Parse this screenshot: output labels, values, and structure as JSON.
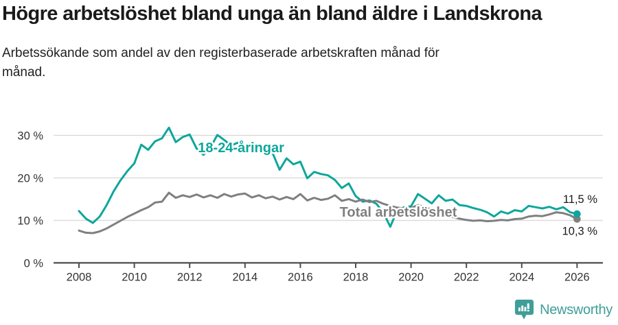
{
  "header": {
    "title": "Högre arbetslöshet bland unga än bland äldre i Landskrona",
    "subtitle": "Arbetssökande som andel av den registerbaserade arbetskraften månad för månad."
  },
  "chart_data": {
    "type": "line",
    "title": "Högre arbetslöshet bland unga än bland äldre i Landskrona",
    "subtitle": "Arbetssökande som andel av den registerbaserade arbetskraften månad för månad.",
    "unit": "%",
    "grid": "horizontal-only",
    "legend_position": "inline-labels",
    "xlim": [
      2007.1,
      2026.9
    ],
    "ylim": [
      0,
      33.5
    ],
    "x_ticks": [
      {
        "v": 2008,
        "label": "2008"
      },
      {
        "v": 2010,
        "label": "2010"
      },
      {
        "v": 2012,
        "label": "2012"
      },
      {
        "v": 2014,
        "label": "2014"
      },
      {
        "v": 2016,
        "label": "2016"
      },
      {
        "v": 2018,
        "label": "2018"
      },
      {
        "v": 2020,
        "label": "2020"
      },
      {
        "v": 2022,
        "label": "2022"
      },
      {
        "v": 2024,
        "label": "2024"
      },
      {
        "v": 2026,
        "label": "2026"
      }
    ],
    "y_ticks": [
      {
        "v": 0,
        "label": "0 %"
      },
      {
        "v": 10,
        "label": "10 %"
      },
      {
        "v": 20,
        "label": "20 %"
      },
      {
        "v": 30,
        "label": "30 %"
      }
    ],
    "grid_color": "#d9d9d9",
    "axis_color": "#4d4d4d",
    "tick_text_color": "#333333",
    "series": [
      {
        "id": "18-24-aringar",
        "name": "18-24-åringar",
        "color": "#0ea69b",
        "start": 2008,
        "step": 0.25,
        "label_x": 2012.3,
        "label_y": 26.0,
        "end_value": 11.5,
        "end_label": "11,5 %",
        "end_label_side": "above",
        "values": [
          12.2,
          10.4,
          9.4,
          10.9,
          13.6,
          16.8,
          19.4,
          21.6,
          23.4,
          27.8,
          26.6,
          28.6,
          29.3,
          31.8,
          28.4,
          29.6,
          30.2,
          26.9,
          25.4,
          27.1,
          30.1,
          28.9,
          27.6,
          28.3,
          27.2,
          26.3,
          27.4,
          26.1,
          25.8,
          21.9,
          24.6,
          23.2,
          23.8,
          19.9,
          21.4,
          20.9,
          20.6,
          19.5,
          17.6,
          18.7,
          15.7,
          14.4,
          14.7,
          13.9,
          11.8,
          8.5,
          12.4,
          13.1,
          13.3,
          16.2,
          15.1,
          14.0,
          15.9,
          14.6,
          14.9,
          13.6,
          13.4,
          12.9,
          12.5,
          11.9,
          10.9,
          12.1,
          11.6,
          12.4,
          12.1,
          13.4,
          13.1,
          12.8,
          13.2,
          12.6,
          13.1,
          11.9,
          11.5
        ]
      },
      {
        "id": "total-arbetsloshet",
        "name": "Total arbetslöshet",
        "color": "#7f7f7f",
        "start": 2008,
        "step": 0.25,
        "label_x": 2017.42,
        "label_y": 10.9,
        "end_value": 10.3,
        "end_label": "10,3 %",
        "end_label_side": "below",
        "values": [
          7.6,
          7.1,
          7.0,
          7.4,
          8.1,
          9.0,
          9.9,
          10.8,
          11.6,
          12.4,
          13.1,
          14.2,
          14.4,
          16.5,
          15.3,
          15.9,
          15.5,
          16.1,
          15.4,
          15.9,
          15.3,
          16.2,
          15.6,
          16.1,
          16.3,
          15.4,
          15.9,
          15.2,
          15.6,
          14.9,
          15.5,
          15.0,
          16.2,
          14.7,
          15.3,
          14.8,
          15.1,
          15.9,
          14.6,
          15.0,
          14.4,
          14.9,
          14.3,
          14.6,
          13.9,
          13.4,
          13.0,
          12.8,
          12.9,
          13.6,
          13.1,
          12.5,
          12.0,
          11.4,
          10.8,
          10.4,
          10.1,
          9.9,
          10.0,
          9.8,
          9.9,
          10.1,
          10.0,
          10.3,
          10.4,
          10.9,
          11.1,
          11.0,
          11.4,
          11.9,
          11.7,
          11.2,
          10.3
        ]
      }
    ]
  },
  "footer": {
    "brand": "Newsworthy",
    "brand_color": "#3f9e98"
  }
}
